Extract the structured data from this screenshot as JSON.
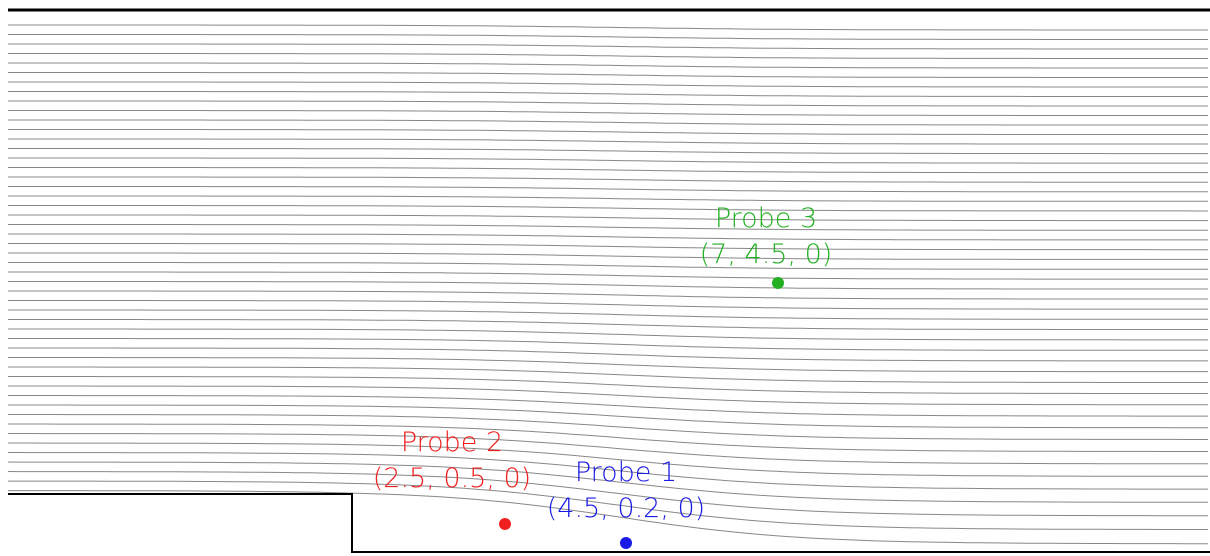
{
  "probes": [
    {
      "name": "Probe 1",
      "coords": "(4.5, 0.2, 0)",
      "color": "#1a1ae6"
    },
    {
      "name": "Probe 2",
      "coords": "(2.5, 0.5, 0)",
      "color": "#f02020"
    },
    {
      "name": "Probe 3",
      "coords": "(7, 4.5, 0)",
      "color": "#22b022"
    }
  ]
}
